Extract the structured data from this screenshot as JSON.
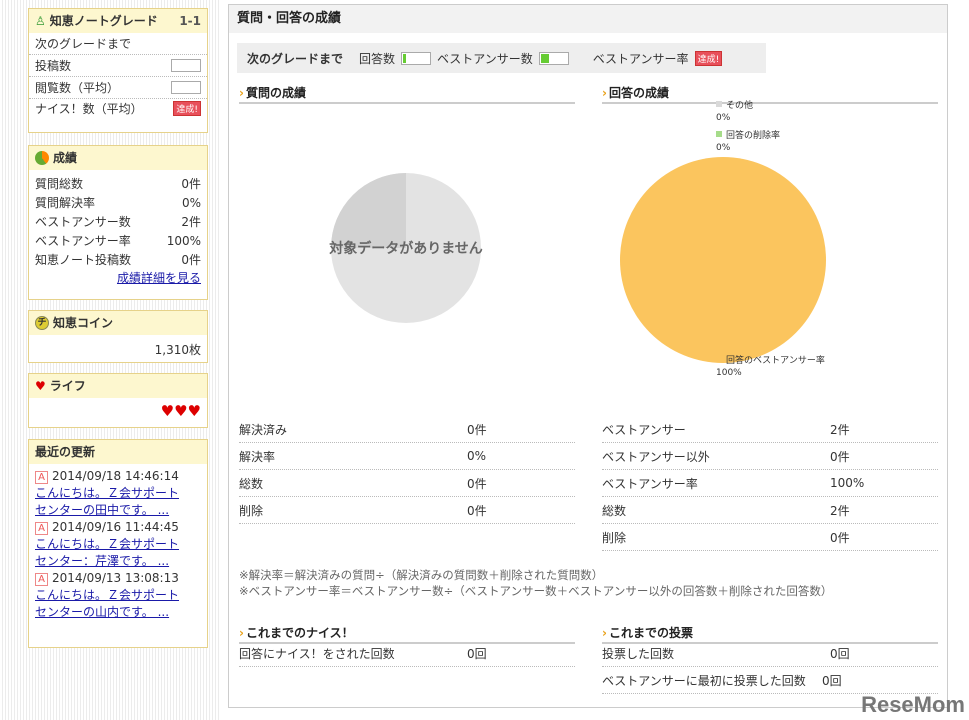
{
  "sidebar": {
    "grade": {
      "title": "知恵ノートグレード",
      "level": "1-1",
      "next": "次のグレードまで",
      "rows": [
        {
          "label": "投稿数"
        },
        {
          "label": "閲覧数（平均）"
        },
        {
          "label": "ナイス！数（平均）",
          "badge": "達成!"
        }
      ]
    },
    "results": {
      "title": "成績",
      "rows": [
        {
          "label": "質問総数",
          "value": "0件"
        },
        {
          "label": "質問解決率",
          "value": "0%"
        },
        {
          "label": "ベストアンサー数",
          "value": "2件"
        },
        {
          "label": "ベストアンサー率",
          "value": "100%"
        },
        {
          "label": "知恵ノート投稿数",
          "value": "0件"
        }
      ],
      "link": "成績詳細を見る"
    },
    "coin": {
      "title": "知恵コイン",
      "value": "1,310枚"
    },
    "life": {
      "title": "ライフ",
      "hearts": 3
    },
    "updates": {
      "title": "最近の更新",
      "items": [
        {
          "badge": "A",
          "date": "2014/09/18 14:46:14",
          "line1": "こんにちは。Ｚ会サポート",
          "line2": "センターの田中です。 ..."
        },
        {
          "badge": "A",
          "date": "2014/09/16 11:44:45",
          "line1": "こんにちは。Ｚ会サポート",
          "line2": "センター：芹澤です。 ..."
        },
        {
          "badge": "A",
          "date": "2014/09/13 13:08:13",
          "line1": "こんにちは。Ｚ会サポート",
          "line2": "センターの山内です。 ..."
        }
      ]
    }
  },
  "main": {
    "title": "質問・回答の成績",
    "grade_bar": {
      "label": "次のグレードまで",
      "answers": "回答数",
      "best": "ベストアンサー数",
      "best_rate": "ベストアンサー率",
      "badge": "達成!"
    },
    "q_title": "質問の成績",
    "a_title": "回答の成績",
    "q_empty": "対象データがありません",
    "q_rows": [
      {
        "label": "解決済み",
        "value": "0件"
      },
      {
        "label": "解決率",
        "value": "0%"
      },
      {
        "label": "総数",
        "value": "0件"
      },
      {
        "label": "削除",
        "value": "0件"
      }
    ],
    "a_rows": [
      {
        "label": "ベストアンサー",
        "value": "2件"
      },
      {
        "label": "ベストアンサー以外",
        "value": "0件"
      },
      {
        "label": "ベストアンサー率",
        "value": "100%"
      },
      {
        "label": "総数",
        "value": "2件"
      },
      {
        "label": "削除",
        "value": "0件"
      }
    ],
    "notes": [
      "※解決率＝解決済みの質問÷（解決済みの質問数＋削除された質問数）",
      "※ベストアンサー率＝ベストアンサー数÷（ベストアンサー数＋ベストアンサー以外の回答数＋削除された回答数）"
    ],
    "nice_title": "これまでのナイス！",
    "nice_rows": [
      {
        "label": "回答にナイス！をされた回数",
        "value": "0回"
      }
    ],
    "vote_title": "これまでの投票",
    "vote_rows": [
      {
        "label": "投票した回数",
        "value": "0回"
      },
      {
        "label": "ベストアンサーに最初に投票した回数",
        "value": "0回"
      }
    ]
  },
  "chart_data": [
    {
      "type": "pie",
      "title": "質問の成績",
      "slices": [],
      "annotation": "対象データがありません"
    },
    {
      "type": "pie",
      "title": "回答の成績",
      "slices": [
        {
          "label": "その他",
          "value": 0,
          "text": "0%",
          "color": "#d9d9d9"
        },
        {
          "label": "回答の削除率",
          "value": 0,
          "text": "0%",
          "color": "#a6dc8a"
        },
        {
          "label": "回答のベストアンサー率",
          "value": 100,
          "text": "100%",
          "color": "#fbc55e"
        }
      ]
    }
  ],
  "watermark": "ReseMom"
}
